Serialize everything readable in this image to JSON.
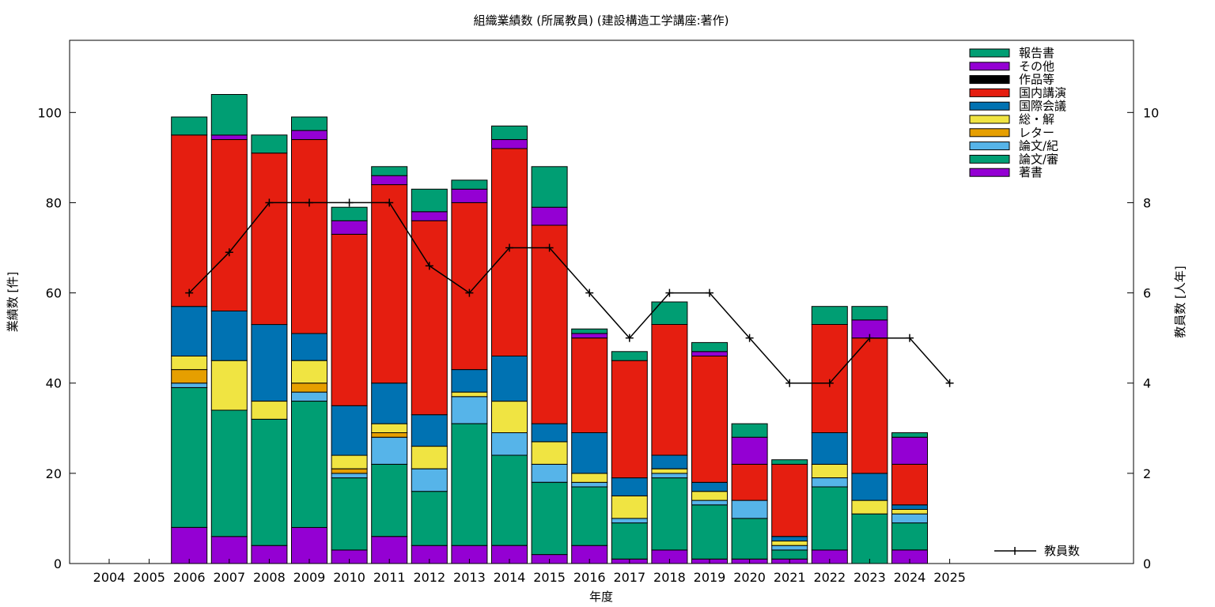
{
  "chart_data": {
    "type": "bar",
    "stacked": true,
    "title": "組織業績数 (所属教員) (建設構造工学講座:著作)",
    "xlabel": "年度",
    "ylabel": "業績数 [件]",
    "y2label": "教員数 [人年]",
    "ylim": [
      0,
      116
    ],
    "y2lim": [
      0,
      11.6
    ],
    "yticks": [
      0,
      20,
      40,
      60,
      80,
      100
    ],
    "y2ticks": [
      0,
      2,
      4,
      6,
      8,
      10
    ],
    "grid": false,
    "legend_position": "top-right",
    "categories": [
      "2004",
      "2005",
      "2006",
      "2007",
      "2008",
      "2009",
      "2010",
      "2011",
      "2012",
      "2013",
      "2014",
      "2015",
      "2016",
      "2017",
      "2018",
      "2019",
      "2020",
      "2021",
      "2022",
      "2023",
      "2024",
      "2025"
    ],
    "series": [
      {
        "name": "著書",
        "color": "#9400d3",
        "values": [
          0,
          0,
          8,
          6,
          4,
          8,
          3,
          6,
          4,
          4,
          4,
          2,
          4,
          1,
          3,
          1,
          1,
          1,
          3,
          0,
          3,
          0
        ]
      },
      {
        "name": "論文/審",
        "color": "#009e73",
        "values": [
          0,
          0,
          31,
          28,
          28,
          28,
          16,
          16,
          12,
          27,
          20,
          16,
          13,
          8,
          16,
          12,
          9,
          2,
          14,
          11,
          6,
          0
        ]
      },
      {
        "name": "論文/紀",
        "color": "#56b4e9",
        "values": [
          0,
          0,
          1,
          0,
          0,
          2,
          1,
          6,
          5,
          6,
          5,
          4,
          1,
          1,
          1,
          1,
          4,
          1,
          2,
          0,
          2,
          0
        ]
      },
      {
        "name": "レター",
        "color": "#e69f00",
        "values": [
          0,
          0,
          3,
          0,
          0,
          2,
          1,
          1,
          0,
          0,
          0,
          0,
          0,
          0,
          0,
          0,
          0,
          0,
          0,
          0,
          0,
          0
        ]
      },
      {
        "name": "総・解",
        "color": "#f0e442",
        "values": [
          0,
          0,
          3,
          11,
          4,
          5,
          3,
          2,
          5,
          1,
          7,
          5,
          2,
          5,
          1,
          2,
          0,
          1,
          3,
          3,
          1,
          0
        ]
      },
      {
        "name": "国際会議",
        "color": "#0072b2",
        "values": [
          0,
          0,
          11,
          11,
          17,
          6,
          11,
          9,
          7,
          5,
          10,
          4,
          9,
          4,
          3,
          2,
          0,
          1,
          7,
          6,
          1,
          0
        ]
      },
      {
        "name": "国内講演",
        "color": "#e51e10",
        "values": [
          0,
          0,
          38,
          38,
          38,
          43,
          38,
          44,
          43,
          37,
          46,
          44,
          21,
          26,
          29,
          28,
          8,
          16,
          24,
          30,
          9,
          0
        ]
      },
      {
        "name": "作品等",
        "color": "#000000",
        "values": [
          0,
          0,
          0,
          0,
          0,
          0,
          0,
          0,
          0,
          0,
          0,
          0,
          0,
          0,
          0,
          0,
          0,
          0,
          0,
          0,
          0,
          0
        ]
      },
      {
        "name": "その他",
        "color": "#9400d3",
        "values": [
          0,
          0,
          0,
          1,
          0,
          2,
          3,
          2,
          2,
          3,
          2,
          4,
          1,
          0,
          0,
          1,
          6,
          0,
          0,
          4,
          6,
          0
        ]
      },
      {
        "name": "報告書",
        "color": "#009e73",
        "values": [
          0,
          0,
          4,
          9,
          4,
          3,
          3,
          2,
          5,
          2,
          3,
          9,
          1,
          2,
          5,
          2,
          3,
          1,
          4,
          3,
          1,
          0
        ]
      }
    ],
    "line_series": {
      "name": "教員数",
      "axis": "y2",
      "color": "#000000",
      "values": [
        null,
        null,
        6,
        6.9,
        8,
        8,
        8,
        8,
        6.6,
        6,
        7,
        7,
        6,
        5,
        6,
        6,
        5,
        4,
        4,
        5,
        5,
        4
      ]
    }
  }
}
